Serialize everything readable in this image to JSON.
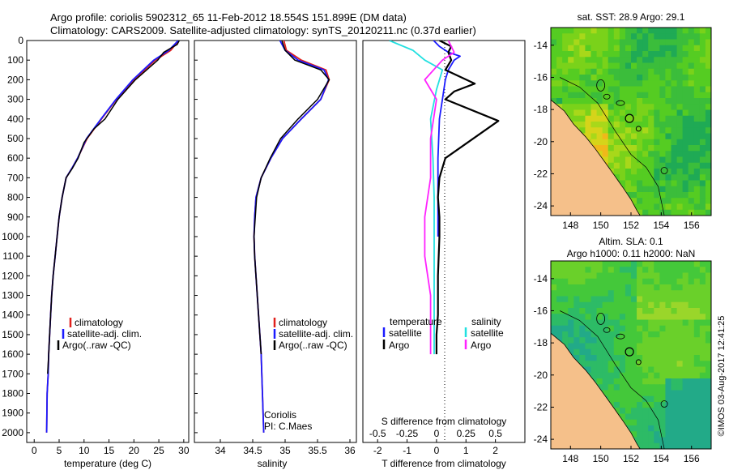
{
  "header": {
    "line1": "Argo profile: coriolis 5902312_65 11-Feb-2012 18.554S 151.899E (DM data)",
    "line2": "Climatology: CARS2009. Satellite-adjusted climatology: synTS_20120211.nc (0.37d earlier)"
  },
  "credit": "©IMOS 03-Aug-2017 12:41:25",
  "colors": {
    "climatology": "#e0201c",
    "satellite": "#1a1aff",
    "argo": "#000000",
    "sal_sat": "#22e0e0",
    "sal_argo": "#ff22ff",
    "land": "#f5c08a"
  },
  "chart_data": [
    {
      "type": "line",
      "name": "temperature",
      "xlabel": "temperature (deg C)",
      "xlim": [
        -1.5,
        31
      ],
      "xticks": [
        0,
        5,
        10,
        15,
        20,
        25,
        30
      ],
      "ylim": [
        2050,
        0
      ],
      "yticks": [
        0,
        100,
        200,
        300,
        400,
        500,
        600,
        700,
        800,
        900,
        1000,
        1100,
        1200,
        1300,
        1400,
        1500,
        1600,
        1700,
        1800,
        1900,
        2000
      ],
      "legend": [
        "climatology",
        "satellite-adj. clim.",
        "Argo(..raw -QC)"
      ],
      "series": [
        {
          "name": "climatology",
          "x": [
            29.0,
            27.4,
            24.3,
            20.0,
            16.5,
            13.5,
            10.6,
            8.7,
            7.6,
            6.4,
            5.6,
            5.0,
            4.6,
            4.2,
            3.8,
            3.5,
            3.3,
            3.1,
            2.9,
            2.8,
            2.6,
            2.5
          ],
          "y": [
            0,
            50,
            100,
            200,
            300,
            400,
            500,
            600,
            650,
            700,
            800,
            900,
            1000,
            1100,
            1200,
            1300,
            1400,
            1500,
            1600,
            1700,
            1800,
            2000
          ]
        },
        {
          "name": "satellite",
          "x": [
            28.9,
            27.0,
            24.0,
            19.8,
            16.4,
            13.4,
            10.5,
            8.7,
            7.6,
            6.4,
            5.6,
            5.0,
            4.6,
            4.2,
            3.8,
            3.5,
            3.3,
            3.1,
            2.9,
            2.8,
            2.6,
            2.5
          ],
          "y": [
            0,
            50,
            100,
            200,
            300,
            400,
            500,
            600,
            650,
            700,
            800,
            900,
            1000,
            1100,
            1200,
            1300,
            1400,
            1500,
            1600,
            1700,
            1800,
            2000
          ]
        },
        {
          "name": "argo",
          "x": [
            29.1,
            28.7,
            26.0,
            24.8,
            20.3,
            16.8,
            14.2,
            12.0,
            10.0,
            8.8,
            7.7,
            6.4,
            5.6,
            5.0,
            4.6,
            4.2,
            3.8,
            3.5,
            3.3,
            3.1,
            2.9,
            2.7
          ],
          "y": [
            0,
            20,
            60,
            100,
            200,
            300,
            400,
            450,
            520,
            600,
            650,
            700,
            800,
            900,
            1000,
            1100,
            1200,
            1300,
            1400,
            1500,
            1600,
            1700
          ]
        }
      ]
    },
    {
      "type": "line",
      "name": "salinity",
      "xlabel": "salinity",
      "xlim": [
        33.6,
        36.1
      ],
      "xticks": [
        34,
        34.5,
        35,
        35.5,
        36
      ],
      "ylim": [
        2050,
        0
      ],
      "legend": [
        "climatology",
        "satellite-adj. clim.",
        "Argo(..raw -QC)"
      ],
      "annotation": [
        "Coriolis",
        "PI: C.Maes"
      ],
      "series": [
        {
          "name": "climatology",
          "x": [
            34.98,
            35.02,
            35.25,
            35.63,
            35.68,
            35.55,
            35.25,
            34.96,
            34.78,
            34.63,
            34.55,
            34.53,
            34.52,
            34.53,
            34.55,
            34.57,
            34.59,
            34.61,
            34.63,
            34.65,
            34.67
          ],
          "y": [
            0,
            50,
            100,
            150,
            200,
            300,
            400,
            500,
            600,
            700,
            800,
            900,
            1000,
            1100,
            1200,
            1300,
            1400,
            1500,
            1600,
            1800,
            2000
          ]
        },
        {
          "name": "satellite",
          "x": [
            34.92,
            35.0,
            35.2,
            35.6,
            35.67,
            35.55,
            35.25,
            34.96,
            34.78,
            34.63,
            34.55,
            34.53,
            34.52,
            34.53,
            34.55,
            34.57,
            34.59,
            34.61,
            34.63,
            34.65,
            34.67
          ],
          "y": [
            0,
            50,
            100,
            150,
            200,
            300,
            400,
            500,
            600,
            700,
            800,
            900,
            1000,
            1100,
            1200,
            1300,
            1400,
            1500,
            1600,
            1800,
            2000
          ]
        },
        {
          "name": "argo",
          "x": [
            34.95,
            35.0,
            35.15,
            35.55,
            35.68,
            35.5,
            35.2,
            34.93,
            34.77,
            34.63,
            34.56,
            34.54,
            34.52,
            34.53,
            34.55,
            34.57,
            34.59,
            34.61,
            34.63
          ],
          "y": [
            0,
            50,
            100,
            150,
            200,
            300,
            400,
            500,
            600,
            700,
            800,
            900,
            1000,
            1100,
            1200,
            1300,
            1400,
            1500,
            1600
          ]
        }
      ]
    },
    {
      "type": "line",
      "name": "difference",
      "xlabel": "T difference from climatology",
      "xlabel_top": "S difference from climatology",
      "xlim": [
        -2.5,
        3.0
      ],
      "xticks_T": [
        -2,
        -1,
        0,
        1,
        2
      ],
      "xticks_S": [
        "-0.5",
        "-0.25",
        "0",
        "0.25",
        "0.5"
      ],
      "ylim": [
        2050,
        0
      ],
      "legend_T": {
        "title": "temperature",
        "items": [
          "satellite",
          "Argo"
        ]
      },
      "legend_S": {
        "title": "salinity",
        "items": [
          "satellite",
          "Argo"
        ]
      },
      "series": [
        {
          "name": "T_satellite",
          "x": [
            -0.1,
            0.1,
            0.4,
            0.8,
            0.6,
            0.4,
            0.3,
            0.2,
            0.1,
            0.05,
            0.05,
            0.05
          ],
          "y": [
            0,
            30,
            60,
            80,
            100,
            150,
            200,
            300,
            400,
            600,
            800,
            1000
          ]
        },
        {
          "name": "T_argo",
          "x": [
            0.1,
            0.5,
            0.4,
            0.5,
            0.3,
            1.3,
            0.6,
            0.3,
            2.1,
            0.3,
            0.1,
            0.05,
            0.1,
            0.1,
            0.05,
            0.05,
            0.0,
            0.0
          ],
          "y": [
            0,
            30,
            60,
            100,
            150,
            220,
            260,
            300,
            410,
            600,
            700,
            800,
            900,
            1000,
            1200,
            1400,
            1500,
            1600
          ]
        },
        {
          "name": "S_satellite",
          "x": [
            -0.4,
            -0.2,
            -0.1,
            0.05,
            0.0,
            -0.05,
            -0.03,
            -0.02,
            -0.02,
            -0.02,
            -0.02,
            -0.02
          ],
          "y": [
            0,
            50,
            100,
            150,
            250,
            400,
            600,
            800,
            1000,
            1200,
            1400,
            1600
          ]
        },
        {
          "name": "S_argo",
          "x": [
            0.1,
            0.15,
            0.05,
            -0.1,
            0.0,
            -0.05,
            -0.05,
            -0.1,
            -0.1,
            -0.05,
            -0.05
          ],
          "y": [
            0,
            60,
            100,
            200,
            300,
            500,
            700,
            900,
            1100,
            1300,
            1600
          ]
        }
      ]
    },
    {
      "type": "heatmap",
      "name": "sst_map",
      "title": "sat. SST: 28.9 Argo: 29.1",
      "xticks": [
        148,
        150,
        152,
        154,
        156
      ],
      "yticks": [
        -14,
        -16,
        -18,
        -20,
        -22,
        -24
      ],
      "xlim": [
        146.7,
        157.3
      ],
      "ylim": [
        -24.6,
        -12.9
      ],
      "profile_location": [
        151.899,
        -18.554
      ]
    },
    {
      "type": "heatmap",
      "name": "sla_map",
      "title_line1": "Altim. SLA: 0.1",
      "title_line2": "Argo h1000: 0.11 h2000: NaN",
      "xticks": [
        148,
        150,
        152,
        154,
        156
      ],
      "yticks": [
        -14,
        -16,
        -18,
        -20,
        -22,
        -24
      ],
      "xlim": [
        146.7,
        157.3
      ],
      "ylim": [
        -24.6,
        -12.9
      ],
      "profile_location": [
        151.899,
        -18.554
      ]
    }
  ]
}
